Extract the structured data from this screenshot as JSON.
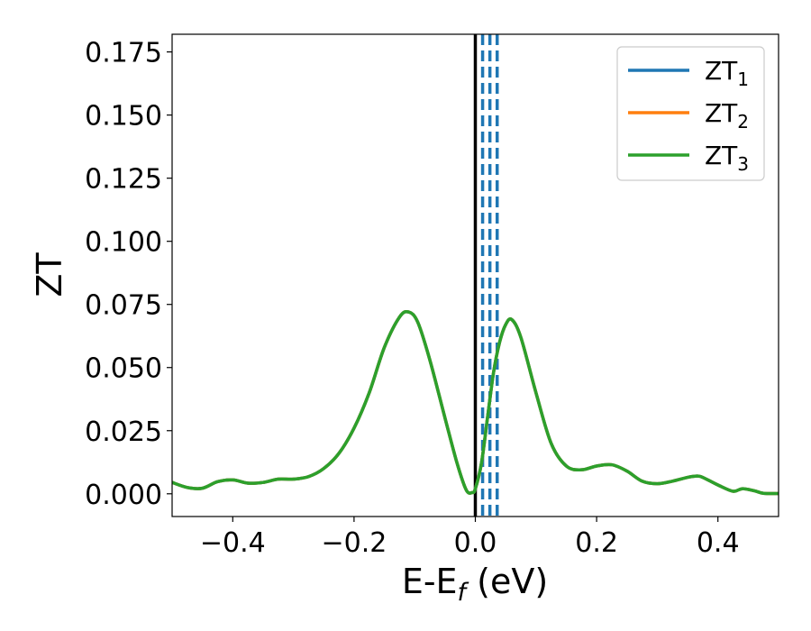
{
  "chart_data": {
    "type": "line",
    "xlabel_main": "E-E",
    "xlabel_sub": "f",
    "xlabel_unit": " (eV)",
    "ylabel": "ZT",
    "xlim": [
      -0.5,
      0.5
    ],
    "ylim": [
      -0.009,
      0.182
    ],
    "xticks": [
      -0.4,
      -0.2,
      0.0,
      0.2,
      0.4
    ],
    "xtick_labels": [
      "−0.4",
      "−0.2",
      "0.0",
      "0.2",
      "0.4"
    ],
    "yticks": [
      0.0,
      0.025,
      0.05,
      0.075,
      0.1,
      0.125,
      0.15,
      0.175
    ],
    "ytick_labels": [
      "0.000",
      "0.025",
      "0.050",
      "0.075",
      "0.100",
      "0.125",
      "0.150",
      "0.175"
    ],
    "legend_position": "top-right",
    "vertical_line_solid": {
      "x": 0.0,
      "color": "#000000"
    },
    "vertical_lines_dashed": {
      "x": [
        0.012,
        0.024,
        0.036
      ],
      "color": "#1f77b4"
    },
    "series": [
      {
        "name": "ZT",
        "sub": "1",
        "color": "#1f77b4",
        "x": [
          -0.5,
          -0.475,
          -0.45,
          -0.425,
          -0.4,
          -0.375,
          -0.35,
          -0.325,
          -0.3,
          -0.275,
          -0.25,
          -0.225,
          -0.2,
          -0.175,
          -0.15,
          -0.125,
          -0.11,
          -0.095,
          -0.075,
          -0.05,
          -0.03,
          -0.015,
          -0.005,
          0.0,
          0.01,
          0.02,
          0.03,
          0.04,
          0.05,
          0.06,
          0.075,
          0.1,
          0.125,
          0.15,
          0.175,
          0.2,
          0.225,
          0.25,
          0.275,
          0.3,
          0.325,
          0.35,
          0.365,
          0.375,
          0.4,
          0.425,
          0.44,
          0.46,
          0.475,
          0.5
        ],
        "values": [
          0.0045,
          0.0025,
          0.0022,
          0.0048,
          0.0055,
          0.0042,
          0.0045,
          0.0058,
          0.0058,
          0.0068,
          0.01,
          0.016,
          0.026,
          0.04,
          0.058,
          0.07,
          0.072,
          0.068,
          0.053,
          0.03,
          0.012,
          0.0015,
          0.0005,
          0.002,
          0.012,
          0.03,
          0.048,
          0.06,
          0.067,
          0.069,
          0.062,
          0.04,
          0.02,
          0.011,
          0.0095,
          0.011,
          0.0115,
          0.009,
          0.005,
          0.004,
          0.005,
          0.0065,
          0.007,
          0.0065,
          0.0035,
          0.001,
          0.002,
          0.0012,
          0.0002,
          0.0001
        ]
      },
      {
        "name": "ZT",
        "sub": "2",
        "color": "#ff7f0e",
        "x": [
          -0.5,
          -0.475,
          -0.45,
          -0.425,
          -0.4,
          -0.375,
          -0.35,
          -0.325,
          -0.3,
          -0.275,
          -0.25,
          -0.225,
          -0.2,
          -0.175,
          -0.15,
          -0.125,
          -0.11,
          -0.095,
          -0.075,
          -0.05,
          -0.03,
          -0.015,
          -0.005,
          0.0,
          0.01,
          0.02,
          0.03,
          0.04,
          0.05,
          0.06,
          0.075,
          0.1,
          0.125,
          0.15,
          0.175,
          0.2,
          0.225,
          0.25,
          0.275,
          0.3,
          0.325,
          0.35,
          0.365,
          0.375,
          0.4,
          0.425,
          0.44,
          0.46,
          0.475,
          0.5
        ],
        "values": [
          0.0045,
          0.0025,
          0.0022,
          0.0048,
          0.0055,
          0.0042,
          0.0045,
          0.0058,
          0.0058,
          0.0068,
          0.01,
          0.016,
          0.026,
          0.04,
          0.058,
          0.07,
          0.072,
          0.068,
          0.053,
          0.03,
          0.012,
          0.0015,
          0.0005,
          0.002,
          0.012,
          0.03,
          0.048,
          0.06,
          0.067,
          0.069,
          0.062,
          0.04,
          0.02,
          0.011,
          0.0095,
          0.011,
          0.0115,
          0.009,
          0.005,
          0.004,
          0.005,
          0.0065,
          0.007,
          0.0065,
          0.0035,
          0.001,
          0.002,
          0.0012,
          0.0002,
          0.0001
        ]
      },
      {
        "name": "ZT",
        "sub": "3",
        "color": "#2ca02c",
        "x": [
          -0.5,
          -0.475,
          -0.45,
          -0.425,
          -0.4,
          -0.375,
          -0.35,
          -0.325,
          -0.3,
          -0.275,
          -0.25,
          -0.225,
          -0.2,
          -0.175,
          -0.15,
          -0.125,
          -0.11,
          -0.095,
          -0.075,
          -0.05,
          -0.03,
          -0.015,
          -0.005,
          0.0,
          0.01,
          0.02,
          0.03,
          0.04,
          0.05,
          0.06,
          0.075,
          0.1,
          0.125,
          0.15,
          0.175,
          0.2,
          0.225,
          0.25,
          0.275,
          0.3,
          0.325,
          0.35,
          0.365,
          0.375,
          0.4,
          0.425,
          0.44,
          0.46,
          0.475,
          0.5
        ],
        "values": [
          0.0045,
          0.0025,
          0.0022,
          0.0048,
          0.0055,
          0.0042,
          0.0045,
          0.0058,
          0.0058,
          0.0068,
          0.01,
          0.016,
          0.026,
          0.04,
          0.058,
          0.07,
          0.072,
          0.068,
          0.053,
          0.03,
          0.012,
          0.0015,
          0.0005,
          0.002,
          0.012,
          0.03,
          0.048,
          0.06,
          0.067,
          0.069,
          0.062,
          0.04,
          0.02,
          0.011,
          0.0095,
          0.011,
          0.0115,
          0.009,
          0.005,
          0.004,
          0.005,
          0.0065,
          0.007,
          0.0065,
          0.0035,
          0.001,
          0.002,
          0.0012,
          0.0002,
          0.0001
        ]
      }
    ]
  }
}
